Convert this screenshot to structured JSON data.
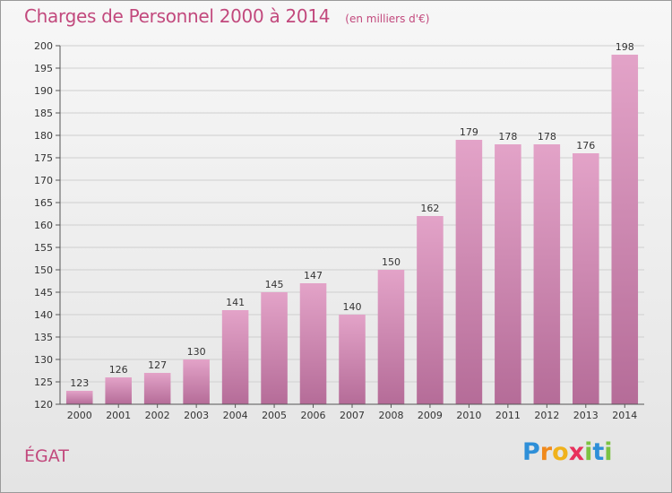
{
  "header": {
    "title": "Charges de Personnel 2000 à 2014",
    "subtitle": "(en milliers d'€)"
  },
  "footer": {
    "commune": "ÉGAT",
    "logo_letters": [
      {
        "char": "P",
        "color": "#2e8fd8"
      },
      {
        "char": "r",
        "color": "#f08a1c"
      },
      {
        "char": "o",
        "color": "#f0b21c"
      },
      {
        "char": "x",
        "color": "#e8305c"
      },
      {
        "char": "i",
        "color": "#7cc242"
      },
      {
        "char": "t",
        "color": "#2e8fd8"
      },
      {
        "char": "i",
        "color": "#7cc242"
      }
    ]
  },
  "colors": {
    "title": "#c2497d",
    "bar_top": "#e3a3c8",
    "bar_bottom": "#b56c98",
    "grid": "#cfcfcf"
  },
  "chart_data": {
    "type": "bar",
    "title": "Charges de Personnel 2000 à 2014",
    "subtitle": "(en milliers d'€)",
    "xlabel": "",
    "ylabel": "",
    "categories": [
      "2000",
      "2001",
      "2002",
      "2003",
      "2004",
      "2005",
      "2006",
      "2007",
      "2008",
      "2009",
      "2010",
      "2011",
      "2012",
      "2013",
      "2014"
    ],
    "values": [
      123,
      126,
      127,
      130,
      141,
      145,
      147,
      140,
      150,
      162,
      179,
      178,
      178,
      176,
      198
    ],
    "ylim": [
      120,
      200
    ],
    "yticks": [
      120,
      125,
      130,
      135,
      140,
      145,
      150,
      155,
      160,
      165,
      170,
      175,
      180,
      185,
      190,
      195,
      200
    ],
    "grid": true,
    "legend": "none"
  }
}
